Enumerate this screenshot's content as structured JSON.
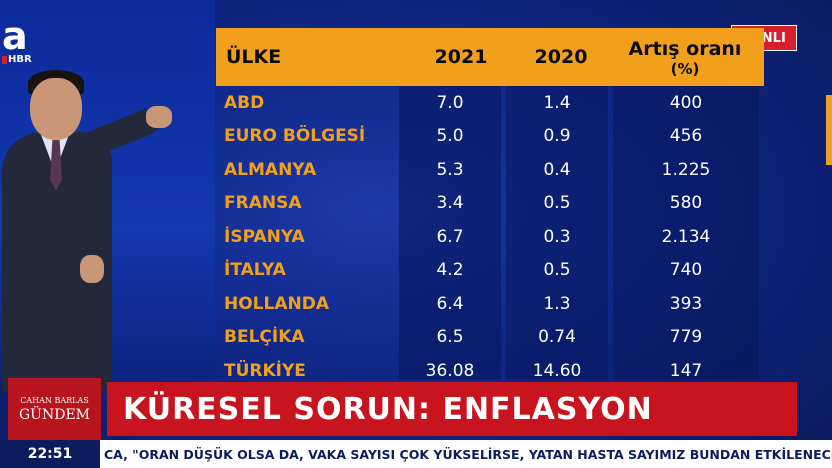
{
  "broadcast": {
    "channel_logo_letter": "a",
    "channel_logo_sub": "HBR",
    "live_badge": "CANLI",
    "program_name_small": "CAHAN BARLAS",
    "program_name": "GÜNDEM",
    "headline": "KÜRESEL SORUN: ENFLASYON",
    "clock": "22:51",
    "ticker": "CA, \"ORAN DÜŞÜK OLSA DA, VAKA SAYISI ÇOK YÜKSELİRSE, YATAN HASTA SAYIMIZ BUNDAN ETKİLENECEKTİR\""
  },
  "table": {
    "headers": {
      "country": "ÜLKE",
      "y2021": "2021",
      "y2020": "2020",
      "increase_line1": "Artış oranı",
      "increase_line2": "(%)"
    },
    "rows": [
      {
        "country": "ABD",
        "y2021": "7.0",
        "y2020": "1.4",
        "increase": "400"
      },
      {
        "country": "EURO BÖLGESİ",
        "y2021": "5.0",
        "y2020": "0.9",
        "increase": "456"
      },
      {
        "country": "ALMANYA",
        "y2021": "5.3",
        "y2020": "0.4",
        "increase": "1.225"
      },
      {
        "country": "FRANSA",
        "y2021": "3.4",
        "y2020": "0.5",
        "increase": "580"
      },
      {
        "country": "İSPANYA",
        "y2021": "6.7",
        "y2020": "0.3",
        "increase": "2.134"
      },
      {
        "country": "İTALYA",
        "y2021": "4.2",
        "y2020": "0.5",
        "increase": "740"
      },
      {
        "country": "HOLLANDA",
        "y2021": "6.4",
        "y2020": "1.3",
        "increase": "393"
      },
      {
        "country": "BELÇİKA",
        "y2021": "6.5",
        "y2020": "0.74",
        "increase": "779"
      },
      {
        "country": "TÜRKİYE",
        "y2021": "36.08",
        "y2020": "14.60",
        "increase": "147"
      }
    ]
  },
  "colors": {
    "header_orange": "#f2a01c",
    "headline_red": "#c8141f",
    "studio_blue": "#10288a"
  }
}
